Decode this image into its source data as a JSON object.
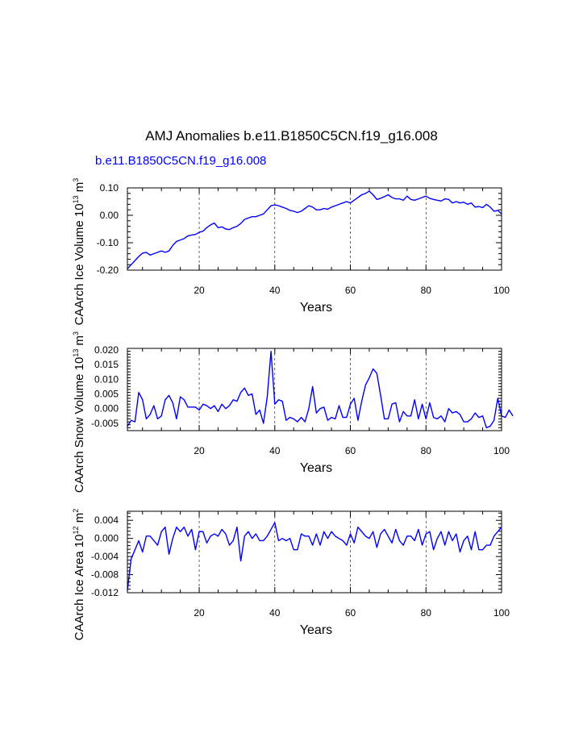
{
  "figure": {
    "title": "AMJ Anomalies b.e11.B1850C5CN.f19_g16.008",
    "subtitle": "b.e11.B1850C5CN.f19_g16.008",
    "series_color": "#0000ff"
  },
  "chart_data": [
    {
      "type": "line",
      "ylabel_base": "CAArch Ice Volume 10",
      "ylabel_exp": "13",
      "ylabel_unit": " m",
      "ylabel_unit_exp": "3",
      "xlabel": "Years",
      "xlim": [
        1,
        100
      ],
      "ylim": [
        -0.2,
        0.1
      ],
      "xticks": [
        20,
        40,
        60,
        80,
        100
      ],
      "xtick_labels": [
        "20",
        "40",
        "60",
        "80",
        "100"
      ],
      "yticks": [
        -0.2,
        -0.1,
        0.0,
        0.1
      ],
      "ytick_labels": [
        "-0.20",
        "-0.10",
        "0.00",
        "0.10"
      ],
      "grid_x": [
        20,
        40,
        60,
        80
      ],
      "series": [
        {
          "name": "b.e11.B1850C5CN.f19_g16.008",
          "x_start": 1,
          "values": [
            -0.195,
            -0.18,
            -0.165,
            -0.15,
            -0.138,
            -0.135,
            -0.145,
            -0.14,
            -0.135,
            -0.13,
            -0.135,
            -0.13,
            -0.11,
            -0.095,
            -0.09,
            -0.085,
            -0.075,
            -0.072,
            -0.07,
            -0.062,
            -0.058,
            -0.045,
            -0.035,
            -0.028,
            -0.045,
            -0.042,
            -0.05,
            -0.052,
            -0.045,
            -0.04,
            -0.03,
            -0.015,
            -0.01,
            -0.005,
            -0.005,
            0.0,
            0.005,
            0.02,
            0.035,
            0.038,
            0.035,
            0.03,
            0.025,
            0.018,
            0.015,
            0.01,
            0.015,
            0.025,
            0.035,
            0.03,
            0.02,
            0.02,
            0.025,
            0.022,
            0.03,
            0.035,
            0.04,
            0.045,
            0.05,
            0.045,
            0.055,
            0.065,
            0.075,
            0.08,
            0.088,
            0.075,
            0.058,
            0.062,
            0.068,
            0.075,
            0.065,
            0.06,
            0.06,
            0.055,
            0.07,
            0.058,
            0.055,
            0.06,
            0.065,
            0.07,
            0.062,
            0.058,
            0.055,
            0.052,
            0.06,
            0.058,
            0.045,
            0.05,
            0.045,
            0.048,
            0.04,
            0.045,
            0.03,
            0.032,
            0.028,
            0.04,
            0.03,
            0.015,
            0.018,
            0.005
          ]
        }
      ]
    },
    {
      "type": "line",
      "ylabel_base": "CAArch Snow Volume 10",
      "ylabel_exp": "13",
      "ylabel_unit": " m",
      "ylabel_unit_exp": "3",
      "xlabel": "Years",
      "xlim": [
        1,
        100
      ],
      "ylim": [
        -0.0075,
        0.0205
      ],
      "xticks": [
        20,
        40,
        60,
        80,
        100
      ],
      "xtick_labels": [
        "20",
        "40",
        "60",
        "80",
        "100"
      ],
      "yticks": [
        -0.005,
        0.0,
        0.005,
        0.01,
        0.015,
        0.02
      ],
      "ytick_labels": [
        "-0.005",
        "0.000",
        "0.005",
        "0.010",
        "0.015",
        "0.020"
      ],
      "grid_x": [
        20,
        40,
        60,
        80
      ],
      "series": [
        {
          "name": "b.e11.B1850C5CN.f19_g16.008",
          "x_start": 1,
          "values": [
            -0.006,
            -0.004,
            -0.0045,
            0.0055,
            0.003,
            -0.0035,
            -0.002,
            0.001,
            -0.0035,
            -0.0025,
            0.003,
            0.0045,
            0.002,
            -0.0035,
            0.004,
            0.003,
            0.0005,
            0.0005,
            0.0005,
            -0.0005,
            0.0015,
            0.001,
            0.0,
            0.001,
            -0.001,
            0.0015,
            0.0,
            0.001,
            0.003,
            0.0025,
            0.0055,
            0.007,
            0.0045,
            0.005,
            -0.002,
            -0.0005,
            -0.005,
            0.004,
            0.0195,
            0.0015,
            0.003,
            0.0025,
            -0.004,
            -0.003,
            -0.0035,
            -0.0045,
            -0.003,
            -0.0045,
            0.0,
            0.0075,
            -0.0015,
            0.0,
            0.0005,
            -0.004,
            -0.003,
            -0.0035,
            0.001,
            -0.003,
            -0.003,
            0.0015,
            0.0035,
            -0.004,
            0.0025,
            0.008,
            0.0105,
            0.0135,
            0.012,
            0.0045,
            -0.0035,
            -0.0035,
            0.0015,
            0.002,
            -0.0045,
            -0.001,
            -0.0025,
            -0.0025,
            0.003,
            -0.0035,
            0.0015,
            -0.0035,
            0.002,
            -0.003,
            -0.0035,
            -0.0025,
            -0.0045,
            0.0,
            -0.0015,
            -0.001,
            -0.002,
            -0.0045,
            -0.0045,
            -0.0035,
            -0.0015,
            -0.003,
            -0.0025,
            -0.0065,
            -0.006,
            -0.004,
            0.0035,
            -0.0025,
            -0.003,
            -0.0005,
            -0.0025
          ]
        }
      ]
    },
    {
      "type": "line",
      "ylabel_base": "CAArch Ice Area 10",
      "ylabel_exp": "12",
      "ylabel_unit": " m",
      "ylabel_unit_exp": "2",
      "xlabel": "Years",
      "xlim": [
        1,
        100
      ],
      "ylim": [
        -0.012,
        0.006
      ],
      "xticks": [
        20,
        40,
        60,
        80,
        100
      ],
      "xtick_labels": [
        "20",
        "40",
        "60",
        "80",
        "100"
      ],
      "yticks": [
        -0.012,
        -0.008,
        -0.004,
        0.0,
        0.004
      ],
      "ytick_labels": [
        "-0.012",
        "-0.008",
        "-0.004",
        "0.000",
        "0.004"
      ],
      "grid_x": [
        20,
        40,
        60,
        80
      ],
      "series": [
        {
          "name": "b.e11.B1850C5CN.f19_g16.008",
          "x_start": 1,
          "values": [
            -0.0115,
            -0.0045,
            -0.0025,
            -0.0005,
            -0.003,
            0.0005,
            0.0005,
            -0.0005,
            -0.0015,
            0.0015,
            0.0025,
            -0.0035,
            0.0,
            0.0025,
            0.0015,
            0.0025,
            0.0005,
            0.002,
            -0.0025,
            0.0015,
            0.0015,
            -0.001,
            0.0005,
            0.001,
            0.0005,
            0.002,
            0.001,
            -0.0015,
            -0.0005,
            0.0025,
            -0.005,
            0.0005,
            0.0015,
            0.0,
            0.001,
            -0.0005,
            -0.0005,
            0.0005,
            0.002,
            0.0035,
            -0.0005,
            0.0,
            -0.0005,
            0.0,
            -0.0025,
            -0.0025,
            0.001,
            0.0005,
            0.0005,
            -0.0015,
            0.001,
            -0.0015,
            0.0015,
            0.0,
            0.0015,
            0.0005,
            0.0,
            -0.0005,
            -0.0015,
            0.001,
            -0.001,
            0.0025,
            0.0015,
            0.0005,
            0.0,
            0.0015,
            -0.002,
            0.001,
            0.002,
            0.0005,
            -0.001,
            0.002,
            -0.0005,
            -0.0015,
            0.0005,
            0.0005,
            -0.0005,
            0.002,
            -0.0015,
            0.001,
            0.0015,
            -0.0025,
            0.0,
            0.0015,
            -0.0015,
            0.0015,
            -0.0005,
            0.001,
            -0.003,
            -0.0005,
            0.0005,
            -0.0025,
            0.0015,
            -0.0025,
            -0.0025,
            -0.0015,
            -0.0015,
            0.0005,
            0.0015,
            0.0025
          ]
        }
      ]
    }
  ]
}
